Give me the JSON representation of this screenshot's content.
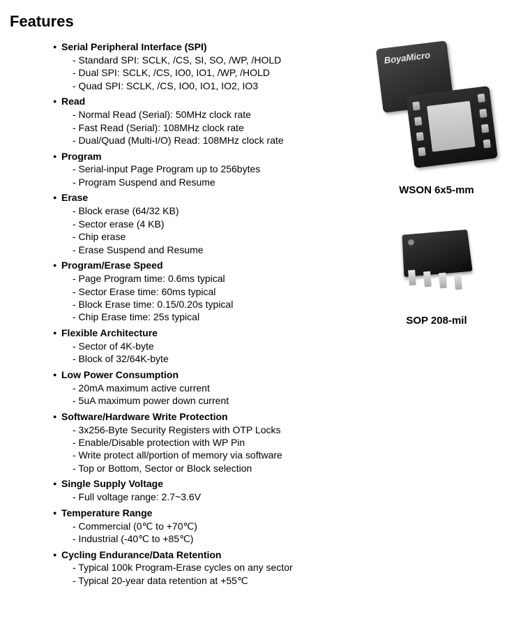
{
  "title": "Features",
  "features": [
    {
      "header": "Serial Peripheral Interface (SPI)",
      "items": [
        "- Standard SPI: SCLK, /CS, SI, SO, /WP, /HOLD",
        "- Dual SPI: SCLK, /CS, IO0, IO1, /WP, /HOLD",
        "- Quad SPI: SCLK, /CS, IO0, IO1, IO2, IO3"
      ]
    },
    {
      "header": "Read",
      "items": [
        "- Normal Read (Serial): 50MHz clock rate",
        "- Fast Read (Serial): 108MHz clock rate",
        "- Dual/Quad (Multi-I/O) Read: 108MHz clock rate"
      ]
    },
    {
      "header": "Program",
      "items": [
        "- Serial-input Page Program up to 256bytes",
        "- Program Suspend and Resume"
      ]
    },
    {
      "header": "Erase",
      "items": [
        "- Block erase (64/32 KB)",
        "- Sector erase (4 KB)",
        "- Chip erase",
        "- Erase Suspend and Resume"
      ]
    },
    {
      "header": "Program/Erase Speed",
      "items": [
        "- Page Program time: 0.6ms typical",
        "- Sector Erase time: 60ms typical",
        "- Block Erase time: 0.15/0.20s typical",
        "- Chip Erase time: 25s typical"
      ]
    },
    {
      "header": "Flexible Architecture",
      "items": [
        "- Sector of 4K-byte",
        "- Block of 32/64K-byte"
      ]
    },
    {
      "header": "Low Power Consumption",
      "items": [
        "- 20mA maximum active current",
        "- 5uA maximum power down current"
      ]
    },
    {
      "header": "Software/Hardware Write Protection",
      "items": [
        "- 3x256-Byte Security Registers with OTP Locks",
        "- Enable/Disable protection with WP Pin",
        "- Write protect all/portion of memory via software",
        "- Top or Bottom, Sector or Block selection"
      ]
    },
    {
      "header": "Single Supply Voltage",
      "items": [
        "- Full voltage range: 2.7~3.6V"
      ]
    },
    {
      "header": "Temperature Range",
      "items": [
        "- Commercial (0℃ to +70℃)",
        "- Industrial (-40℃ to +85℃)"
      ]
    },
    {
      "header": "Cycling Endurance/Data Retention",
      "items": [
        "- Typical 100k Program-Erase cycles on any sector",
        "- Typical 20-year data retention at +55℃"
      ]
    }
  ],
  "packages": {
    "wson": {
      "brand": "BoyaMicro",
      "label": "WSON 6x5-mm"
    },
    "sop": {
      "label": "SOP 208-mil"
    }
  },
  "colors": {
    "text": "#000000",
    "background": "#ffffff",
    "chip_dark": "#1c1c1c",
    "chip_light": "#4a4a4a",
    "metal": "#c8c8c8"
  }
}
